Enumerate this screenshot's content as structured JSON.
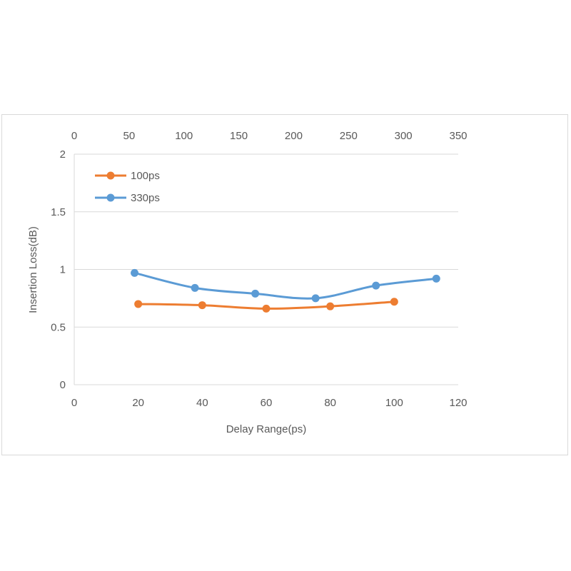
{
  "chart_data": {
    "type": "line",
    "title": "",
    "xlabel": "Delay Range(ps)",
    "ylabel": "Insertion Loss(dB)",
    "xlim": [
      0,
      120
    ],
    "ylim": [
      0,
      2
    ],
    "x2lim": [
      0,
      350
    ],
    "x_ticks": [
      "0",
      "20",
      "40",
      "60",
      "80",
      "100",
      "120"
    ],
    "x2_ticks": [
      "0",
      "50",
      "100",
      "150",
      "200",
      "250",
      "300",
      "350"
    ],
    "y_ticks": [
      "0",
      "0.5",
      "1",
      "1.5",
      "2"
    ],
    "grid": "horizontal",
    "legend_position": "top-left",
    "series": [
      {
        "name": "100ps",
        "color": "#ED7D31",
        "axis": "bottom",
        "x": [
          20,
          40,
          60,
          80,
          100
        ],
        "y": [
          0.7,
          0.69,
          0.66,
          0.68,
          0.72
        ]
      },
      {
        "name": "330ps",
        "color": "#5B9BD5",
        "axis": "top",
        "x": [
          55,
          110,
          165,
          220,
          275,
          330
        ],
        "y": [
          0.97,
          0.84,
          0.79,
          0.75,
          0.86,
          0.92
        ]
      }
    ]
  }
}
